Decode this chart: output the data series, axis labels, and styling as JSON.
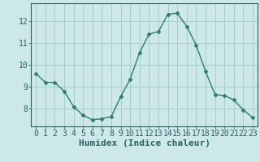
{
  "x": [
    0,
    1,
    2,
    3,
    4,
    5,
    6,
    7,
    8,
    9,
    10,
    11,
    12,
    13,
    14,
    15,
    16,
    17,
    18,
    19,
    20,
    21,
    22,
    23
  ],
  "y": [
    9.6,
    9.2,
    9.2,
    8.8,
    8.1,
    7.7,
    7.5,
    7.55,
    7.65,
    8.55,
    9.35,
    10.55,
    11.4,
    11.5,
    12.3,
    12.35,
    11.75,
    10.9,
    9.7,
    8.65,
    8.6,
    8.4,
    7.95,
    7.6
  ],
  "line_color": "#2e7d6e",
  "marker": "D",
  "marker_size": 2.5,
  "bg_color": "#cce8ea",
  "grid_color": "#a8cccc",
  "axis_color": "#2e6060",
  "xlabel": "Humidex (Indice chaleur)",
  "xlabel_fontsize": 8,
  "tick_fontsize": 7,
  "yticks": [
    8,
    9,
    10,
    11,
    12
  ],
  "ylim": [
    7.2,
    12.8
  ],
  "xlim": [
    -0.5,
    23.5
  ]
}
